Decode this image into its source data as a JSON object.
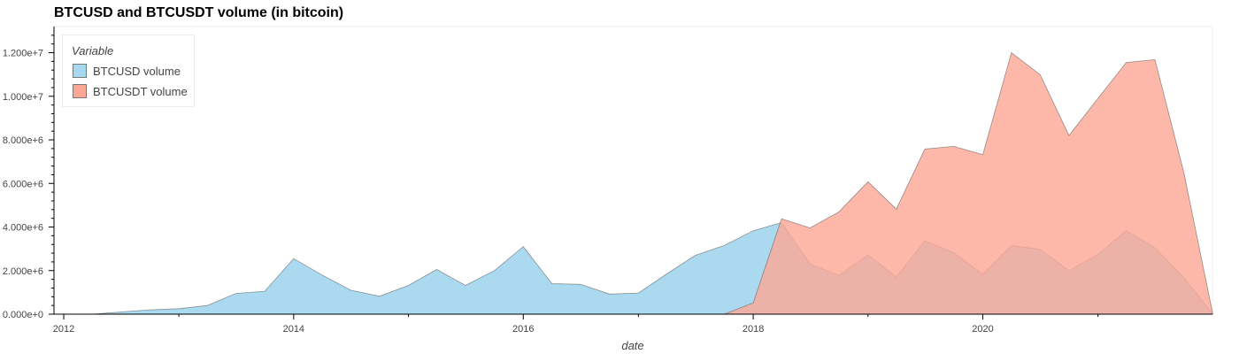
{
  "chart_data": {
    "type": "area",
    "title": "BTCUSD and BTCUSDT volume (in bitcoin)",
    "xlabel": "date",
    "ylabel": "",
    "xlim": [
      "2011-12-01",
      "2021-12-31"
    ],
    "ylim": [
      0,
      13200000
    ],
    "x_ticks": [
      2012,
      2014,
      2016,
      2018,
      2020
    ],
    "y_ticks": [
      0,
      2000000,
      4000000,
      6000000,
      8000000,
      10000000,
      12000000
    ],
    "y_tick_labels": [
      "0.000e+0",
      "2.000e+6",
      "4.000e+6",
      "6.000e+6",
      "8.000e+6",
      "1.000e+7",
      "1.200e+7"
    ],
    "grid": false,
    "legend": {
      "title": "Variable",
      "position": "top-left"
    },
    "series": [
      {
        "name": "BTCUSD volume",
        "color": "#a6d8ef",
        "points": [
          [
            "2012-01-01",
            0
          ],
          [
            "2012-04-01",
            0
          ],
          [
            "2012-07-01",
            100000
          ],
          [
            "2012-10-01",
            200000
          ],
          [
            "2013-01-01",
            250000
          ],
          [
            "2013-04-01",
            400000
          ],
          [
            "2013-07-01",
            950000
          ],
          [
            "2013-10-01",
            1050000
          ],
          [
            "2014-01-01",
            2550000
          ],
          [
            "2014-04-01",
            1800000
          ],
          [
            "2014-07-01",
            1100000
          ],
          [
            "2014-10-01",
            820000
          ],
          [
            "2015-01-01",
            1320000
          ],
          [
            "2015-04-01",
            2050000
          ],
          [
            "2015-07-01",
            1320000
          ],
          [
            "2015-10-01",
            2000000
          ],
          [
            "2016-01-01",
            3100000
          ],
          [
            "2016-04-01",
            1400000
          ],
          [
            "2016-07-01",
            1370000
          ],
          [
            "2016-10-01",
            920000
          ],
          [
            "2017-01-01",
            970000
          ],
          [
            "2017-04-01",
            1850000
          ],
          [
            "2017-07-01",
            2700000
          ],
          [
            "2017-10-01",
            3150000
          ],
          [
            "2018-01-01",
            3830000
          ],
          [
            "2018-04-01",
            4200000
          ],
          [
            "2018-07-01",
            2300000
          ],
          [
            "2018-10-01",
            1780000
          ],
          [
            "2019-01-01",
            2720000
          ],
          [
            "2019-04-01",
            1700000
          ],
          [
            "2019-07-01",
            3370000
          ],
          [
            "2019-10-01",
            2820000
          ],
          [
            "2020-01-01",
            1830000
          ],
          [
            "2020-04-01",
            3150000
          ],
          [
            "2020-07-01",
            2980000
          ],
          [
            "2020-10-01",
            2000000
          ],
          [
            "2021-01-01",
            2750000
          ],
          [
            "2021-04-01",
            3830000
          ],
          [
            "2021-07-01",
            3050000
          ],
          [
            "2021-10-01",
            1680000
          ],
          [
            "2022-01-01",
            0
          ]
        ]
      },
      {
        "name": "BTCUSDT volume",
        "color": "#fca695",
        "points": [
          [
            "2017-10-01",
            0
          ],
          [
            "2018-01-01",
            520000
          ],
          [
            "2018-04-01",
            4380000
          ],
          [
            "2018-07-01",
            3960000
          ],
          [
            "2018-10-01",
            4700000
          ],
          [
            "2019-01-01",
            6080000
          ],
          [
            "2019-04-01",
            4820000
          ],
          [
            "2019-07-01",
            7580000
          ],
          [
            "2019-10-01",
            7700000
          ],
          [
            "2020-01-01",
            7320000
          ],
          [
            "2020-04-01",
            12000000
          ],
          [
            "2020-07-01",
            11000000
          ],
          [
            "2020-10-01",
            8200000
          ],
          [
            "2021-01-01",
            9900000
          ],
          [
            "2021-04-01",
            11550000
          ],
          [
            "2021-07-01",
            11680000
          ],
          [
            "2021-10-01",
            6500000
          ],
          [
            "2022-01-01",
            0
          ]
        ]
      }
    ]
  }
}
